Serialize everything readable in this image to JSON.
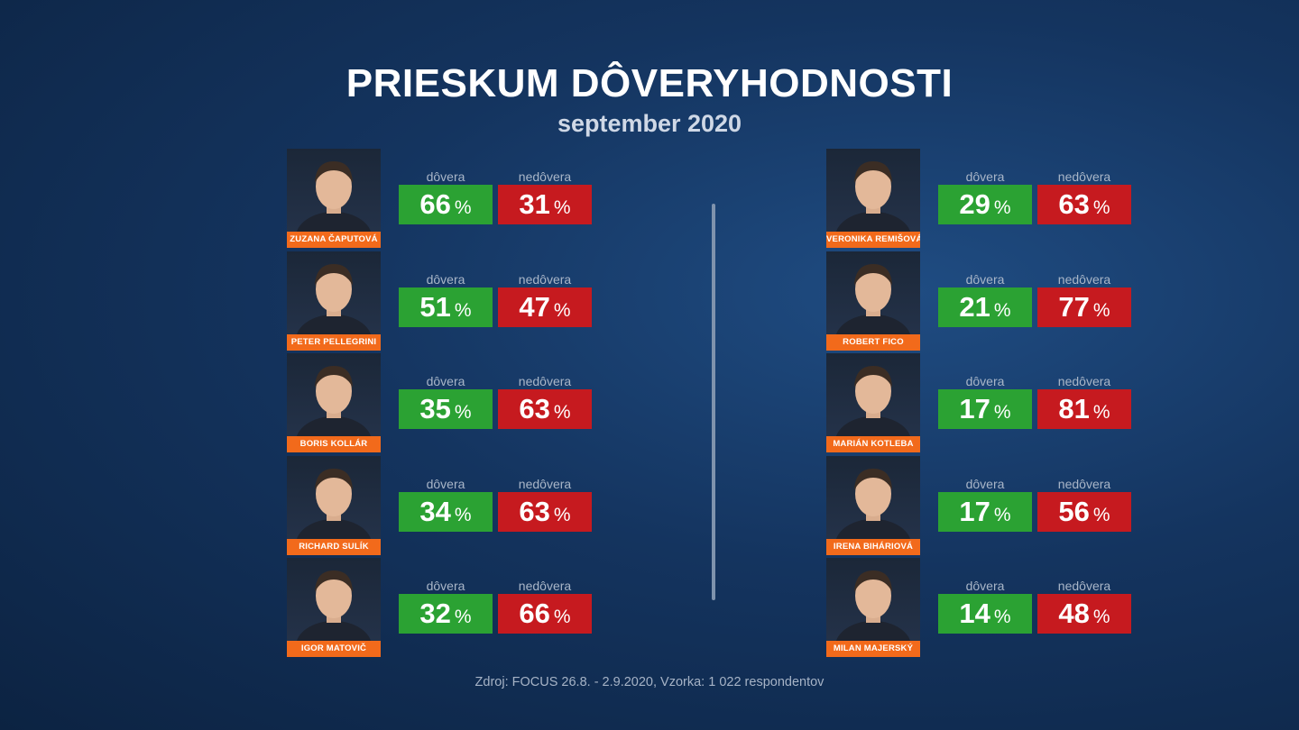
{
  "title": "PRIESKUM DÔVERYHODNOSTI",
  "subtitle": "september 2020",
  "source": "Zdroj: FOCUS 26.8. - 2.9.2020, Vzorka: 1 022 respondentov",
  "label_trust": "dôvera",
  "label_distrust": "nedôvera",
  "percent_sign": "%",
  "colors": {
    "trust": "#2ba233",
    "distrust": "#c61a1f",
    "name_bar": "#f26a1b"
  },
  "chart_data": {
    "type": "table",
    "title": "PRIESKUM DÔVERYHODNOSTI",
    "subtitle": "september 2020",
    "columns": [
      "dôvera",
      "nedôvera"
    ],
    "left": [
      {
        "name": "ZUZANA ČAPUTOVÁ",
        "trust": 66,
        "distrust": 31
      },
      {
        "name": "PETER PELLEGRINI",
        "trust": 51,
        "distrust": 47
      },
      {
        "name": "BORIS KOLLÁR",
        "trust": 35,
        "distrust": 63
      },
      {
        "name": "RICHARD SULÍK",
        "trust": 34,
        "distrust": 63
      },
      {
        "name": "IGOR MATOVIČ",
        "trust": 32,
        "distrust": 66
      }
    ],
    "right": [
      {
        "name": "VERONIKA REMIŠOVÁ",
        "trust": 29,
        "distrust": 63
      },
      {
        "name": "ROBERT FICO",
        "trust": 21,
        "distrust": 77
      },
      {
        "name": "MARIÁN KOTLEBA",
        "trust": 17,
        "distrust": 81
      },
      {
        "name": "IRENA BIHÁRIOVÁ",
        "trust": 17,
        "distrust": 56
      },
      {
        "name": "MILAN MAJERSKÝ",
        "trust": 14,
        "distrust": 48
      }
    ]
  }
}
